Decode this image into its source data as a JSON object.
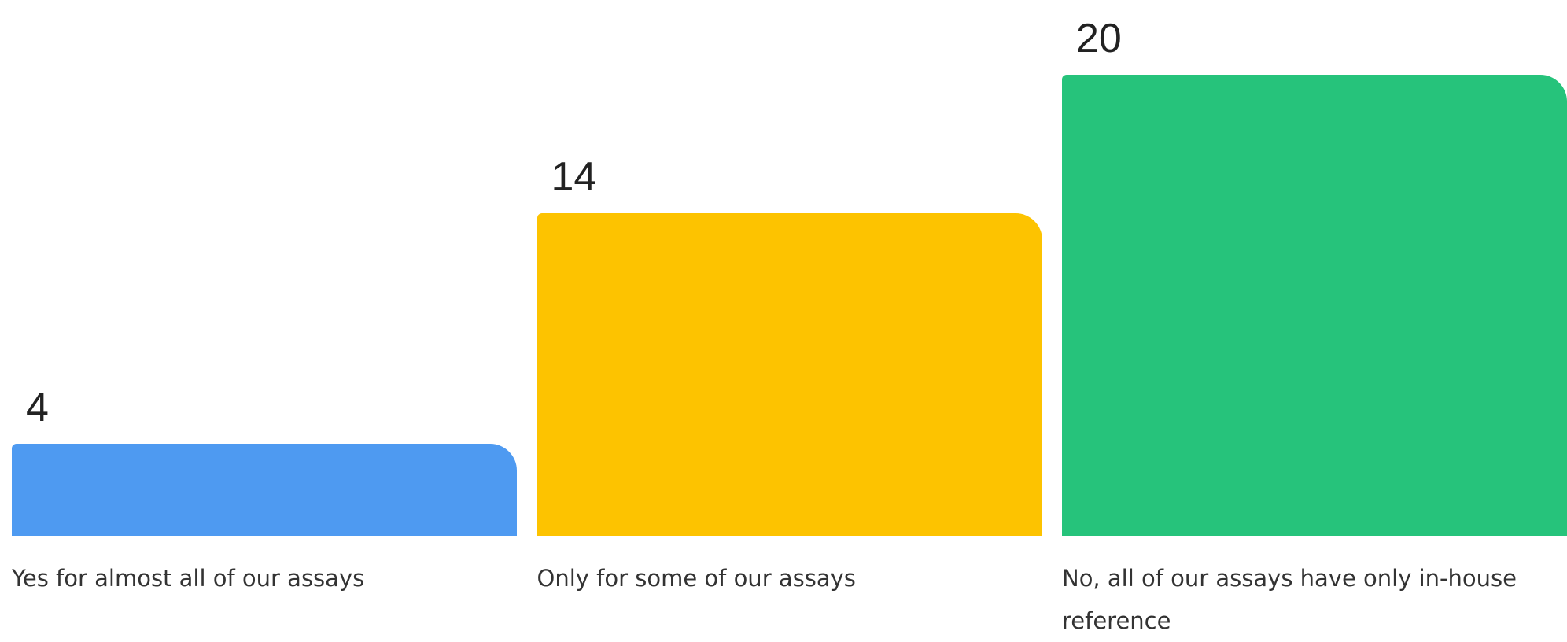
{
  "chart_data": {
    "type": "bar",
    "categories": [
      "Yes for almost all of our assays",
      "Only for some of our assays",
      "No, all of our assays have only in-house reference"
    ],
    "values": [
      4,
      14,
      20
    ],
    "colors": [
      "#4e9af1",
      "#fdc300",
      "#26c37b"
    ]
  }
}
